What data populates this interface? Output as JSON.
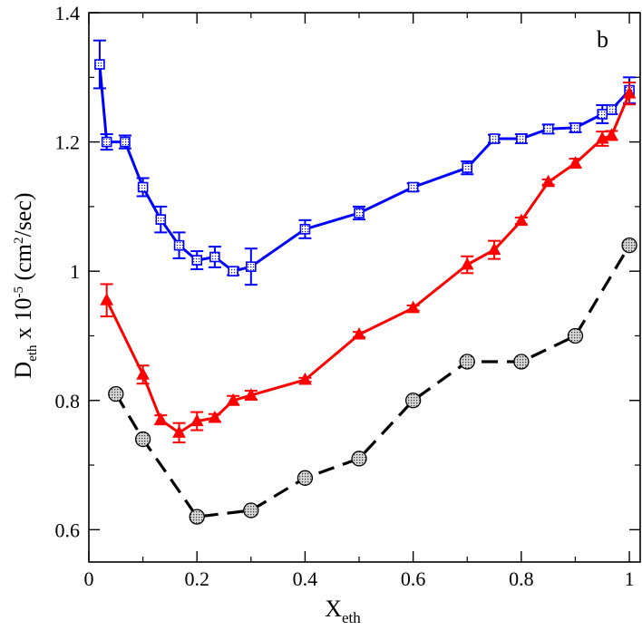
{
  "chart_data": {
    "type": "line",
    "panel_label": "b",
    "xlabel": {
      "main": "X",
      "sub": "eth"
    },
    "ylabel": {
      "main": "D",
      "sub": "eth",
      "mid": " x 10",
      "sup": "-5",
      "unit_open": " (cm",
      "unit_sup": "2",
      "unit_close": "/sec)"
    },
    "xlim": [
      0,
      1.02
    ],
    "ylim": [
      0.55,
      1.4
    ],
    "x_ticks": [
      0,
      0.2,
      0.4,
      0.6,
      0.8,
      1
    ],
    "x_tick_labels": [
      "0",
      "0.2",
      "0.4",
      "0.6",
      "0.8",
      "1"
    ],
    "y_ticks": [
      0.6,
      0.8,
      1.0,
      1.2,
      1.4
    ],
    "y_tick_labels": [
      "0.6",
      "0.8",
      "1",
      "1.2",
      "1.4"
    ],
    "series": [
      {
        "name": "blue-squares",
        "color": "#0000ff",
        "marker": "square",
        "dashed": false,
        "x": [
          0.02,
          0.033,
          0.067,
          0.1,
          0.133,
          0.167,
          0.2,
          0.233,
          0.267,
          0.3,
          0.4,
          0.5,
          0.6,
          0.7,
          0.75,
          0.8,
          0.85,
          0.9,
          0.95,
          0.967,
          1.0
        ],
        "y": [
          1.32,
          1.2,
          1.2,
          1.13,
          1.08,
          1.04,
          1.017,
          1.022,
          1.0,
          1.007,
          1.065,
          1.09,
          1.13,
          1.16,
          1.205,
          1.205,
          1.22,
          1.222,
          1.243,
          1.25,
          1.28
        ],
        "err": [
          0.037,
          0.012,
          0.01,
          0.014,
          0.02,
          0.02,
          0.014,
          0.016,
          0.006,
          0.028,
          0.014,
          0.01,
          0.006,
          0.01,
          0.006,
          0.007,
          0.007,
          0.007,
          0.014,
          0.007,
          0.02
        ]
      },
      {
        "name": "red-triangles",
        "color": "#ff0000",
        "marker": "triangle",
        "dashed": false,
        "x": [
          0.033,
          0.1,
          0.133,
          0.167,
          0.2,
          0.233,
          0.267,
          0.3,
          0.4,
          0.5,
          0.6,
          0.7,
          0.75,
          0.8,
          0.85,
          0.9,
          0.95,
          0.967,
          1.0
        ],
        "y": [
          0.955,
          0.84,
          0.77,
          0.75,
          0.768,
          0.773,
          0.8,
          0.808,
          0.832,
          0.902,
          0.943,
          1.01,
          1.033,
          1.078,
          1.138,
          1.167,
          1.205,
          1.21,
          1.275
        ],
        "err": [
          0.025,
          0.014,
          0.007,
          0.015,
          0.014,
          0.006,
          0.007,
          0.007,
          0.003,
          0.004,
          0.004,
          0.013,
          0.014,
          0.005,
          0.004,
          0.007,
          0.011,
          0.007,
          0.017
        ]
      },
      {
        "name": "grey-circles",
        "color": "#000000",
        "marker": "circle",
        "dashed": true,
        "x": [
          0.05,
          0.1,
          0.2,
          0.3,
          0.4,
          0.5,
          0.6,
          0.7,
          0.8,
          0.9,
          1.0
        ],
        "y": [
          0.81,
          0.74,
          0.62,
          0.63,
          0.68,
          0.71,
          0.8,
          0.86,
          0.86,
          0.9,
          1.04
        ],
        "err": []
      }
    ]
  }
}
